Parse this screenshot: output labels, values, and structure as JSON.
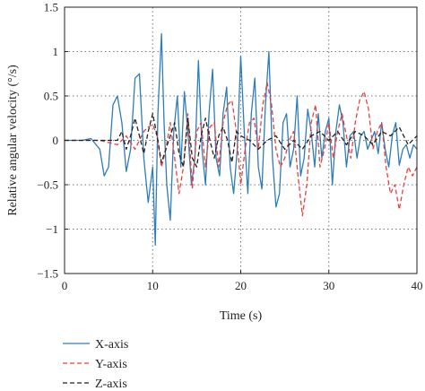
{
  "chart_data": {
    "type": "line",
    "title": "",
    "xlabel": "Time (s)",
    "ylabel": "Relative angular velocity (°/s)",
    "xlim": [
      0,
      40
    ],
    "ylim": [
      -1.5,
      1.5
    ],
    "xticks": [
      0,
      10,
      20,
      30,
      40
    ],
    "yticks": [
      -1.5,
      -1,
      -0.5,
      0,
      0.5,
      1,
      1.5
    ],
    "xtick_labels": [
      "0",
      "10",
      "20",
      "30",
      "40"
    ],
    "ytick_labels": [
      "−1.5",
      "−1",
      "−0.5",
      "0",
      "0.5",
      "1",
      "1.5"
    ],
    "grid": "dotted vertical and horizontal lines at major ticks",
    "legend_position": "below",
    "series": [
      {
        "name": "X-axis",
        "color": "#2e7dbb",
        "style": "solid",
        "x": [
          0,
          1,
          2,
          3,
          4,
          4.5,
          5,
          5.5,
          6,
          6.5,
          7,
          7.5,
          8,
          8.5,
          9,
          9.5,
          10,
          10.3,
          10.6,
          11,
          11.3,
          11.6,
          12,
          12.4,
          12.8,
          13.2,
          13.6,
          14,
          14.4,
          14.8,
          15.2,
          15.6,
          16,
          16.4,
          16.8,
          17.2,
          17.6,
          18,
          18.4,
          18.8,
          19.2,
          19.6,
          20,
          20.4,
          20.8,
          21.2,
          21.6,
          22,
          22.4,
          22.8,
          23.2,
          23.6,
          24,
          24.4,
          24.8,
          25.2,
          25.6,
          26,
          26.4,
          26.8,
          27.2,
          27.6,
          28,
          28.4,
          28.8,
          29.2,
          29.6,
          30,
          30.4,
          30.8,
          31.2,
          31.6,
          32,
          32.4,
          32.8,
          33.2,
          33.6,
          34,
          34.4,
          34.8,
          35.2,
          35.6,
          36,
          36.4,
          36.8,
          37.2,
          37.6,
          38,
          38.4,
          38.8,
          39.2,
          39.6,
          40
        ],
        "y": [
          0,
          0,
          0,
          0.02,
          -0.1,
          -0.4,
          -0.3,
          0.4,
          0.5,
          0.2,
          -0.35,
          -0.1,
          0.7,
          0.75,
          -0.2,
          -0.7,
          -0.3,
          -1.18,
          0.3,
          1.2,
          0.2,
          -0.5,
          -0.9,
          0.1,
          0.5,
          -0.3,
          0.55,
          0.1,
          -0.5,
          -0.2,
          0.9,
          -0.1,
          -0.5,
          0.3,
          0.8,
          -0.2,
          -0.4,
          0.3,
          0.6,
          -0.3,
          -0.6,
          -0.1,
          0.95,
          0.1,
          -0.6,
          0.3,
          0.7,
          -0.3,
          -0.55,
          0.4,
          1.0,
          -0.2,
          -0.75,
          -0.6,
          0.2,
          0.3,
          -0.3,
          -0.1,
          0.5,
          -0.4,
          -0.2,
          0.35,
          0.1,
          -0.3,
          0.3,
          -0.2,
          0.1,
          0.25,
          -0.5,
          0.1,
          0.4,
          0.2,
          -0.3,
          0.05,
          0.1,
          -0.2,
          0.05,
          0.1,
          -0.1,
          0,
          0.1,
          -0.15,
          0.2,
          -0.1,
          -0.3,
          0.05,
          0.2,
          -0.28,
          -0.1,
          -0.05,
          -0.2,
          -0.05,
          -0.1
        ]
      },
      {
        "name": "Y-axis",
        "color": "#e8413a",
        "style": "dashed",
        "x": [
          0,
          2,
          4,
          6,
          7,
          8,
          9,
          9.5,
          10,
          10.5,
          11,
          11.5,
          12,
          12.5,
          13,
          13.5,
          14,
          14.5,
          15,
          15.5,
          16,
          16.5,
          17,
          17.5,
          18,
          18.5,
          19,
          19.5,
          20,
          20.5,
          21,
          21.5,
          22,
          22.5,
          23,
          23.5,
          24,
          24.5,
          25,
          25.5,
          26,
          26.5,
          27,
          27.5,
          28,
          28.5,
          29,
          29.5,
          30,
          30.5,
          31,
          31.5,
          32,
          32.5,
          33,
          33.5,
          34,
          34.5,
          35,
          35.5,
          36,
          36.5,
          37,
          37.5,
          38,
          38.5,
          39,
          39.5,
          40
        ],
        "y": [
          0,
          0,
          0,
          -0.05,
          0.05,
          -0.1,
          0.1,
          0.15,
          0.18,
          0.05,
          -0.3,
          -0.1,
          0.2,
          -0.2,
          -0.6,
          -0.3,
          0.3,
          -0.55,
          0.1,
          0.2,
          -0.3,
          0.15,
          0.2,
          -0.3,
          0.2,
          0.4,
          0.45,
          0.1,
          -0.5,
          -0.1,
          0.2,
          0.25,
          -0.1,
          0.4,
          0.65,
          0.4,
          -0.1,
          -0.3,
          -0.2,
          0,
          0.1,
          -0.4,
          -0.85,
          -0.5,
          0.2,
          0.4,
          -0.3,
          -0.1,
          0.2,
          -0.2,
          0.1,
          0.3,
          0.05,
          -0.2,
          0.2,
          0.45,
          0.55,
          0.35,
          -0.1,
          0.1,
          0.2,
          -0.3,
          -0.6,
          -0.5,
          -0.78,
          -0.5,
          -0.3,
          -0.4,
          -0.3
        ]
      },
      {
        "name": "Z-axis",
        "color": "#222222",
        "style": "dashed",
        "x": [
          0,
          2,
          4,
          6,
          6.5,
          7,
          7.5,
          8,
          8.5,
          9,
          9.5,
          10,
          10.5,
          11,
          11.5,
          12,
          12.5,
          13,
          13.5,
          14,
          14.5,
          15,
          15.5,
          16,
          16.5,
          17,
          17.5,
          18,
          18.5,
          19,
          19.5,
          20,
          21,
          22,
          23,
          24,
          25,
          26,
          27,
          28,
          29,
          30,
          31,
          32,
          33,
          34,
          35,
          36,
          37,
          38,
          39,
          40
        ],
        "y": [
          0,
          0,
          0,
          0,
          0.1,
          -0.1,
          0.05,
          0.25,
          0.05,
          -0.15,
          0.1,
          0.3,
          0.05,
          -0.25,
          -0.1,
          0.05,
          0.2,
          -0.15,
          -0.3,
          0.25,
          -0.2,
          -0.3,
          0.05,
          0.25,
          0,
          -0.2,
          0.05,
          0.15,
          0,
          -0.25,
          0.1,
          0.05,
          0,
          -0.1,
          0,
          0.05,
          -0.1,
          0,
          -0.1,
          0.05,
          0.1,
          0,
          0.1,
          -0.05,
          0.1,
          0.05,
          -0.05,
          0.1,
          0.05,
          0.15,
          -0.05,
          0.05
        ]
      }
    ]
  }
}
